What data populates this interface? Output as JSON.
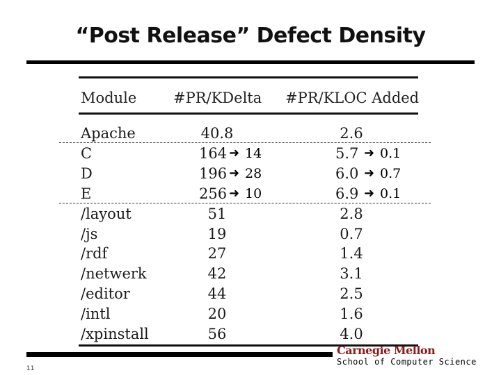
{
  "slide": {
    "title": "“Post Release” Defect Density",
    "page_number": "11"
  },
  "table": {
    "headers": [
      "Module",
      "#PR/KDelta",
      "#PR/KLOC Added"
    ],
    "rows": [
      {
        "module": "Apache",
        "kdelta": "40.8",
        "kloc": "2.6"
      },
      {
        "module": "C",
        "kdelta": "164",
        "kdelta_new": "14",
        "kloc": "5.7",
        "kloc_new": "0.1"
      },
      {
        "module": "D",
        "kdelta": "196",
        "kdelta_new": "28",
        "kloc": "6.0",
        "kloc_new": "0.7"
      },
      {
        "module": "E",
        "kdelta": "256",
        "kdelta_new": "10",
        "kloc": "6.9",
        "kloc_new": "0.1"
      },
      {
        "module": "/layout",
        "kdelta": "51",
        "kloc": "2.8"
      },
      {
        "module": "/js",
        "kdelta": "19",
        "kloc": "0.7"
      },
      {
        "module": "/rdf",
        "kdelta": "27",
        "kloc": "1.4"
      },
      {
        "module": "/netwerk",
        "kdelta": "42",
        "kloc": "3.1"
      },
      {
        "module": "/editor",
        "kdelta": "44",
        "kloc": "2.5"
      },
      {
        "module": "/intl",
        "kdelta": "20",
        "kloc": "1.6"
      },
      {
        "module": "/xpinstall",
        "kdelta": "56",
        "kloc": "4.0"
      }
    ]
  },
  "footer": {
    "university": "Carnegie Mellon",
    "school": "School of Computer Science"
  },
  "icons": {
    "arrow": "right-arrow-icon"
  },
  "colors": {
    "brand": "#8b1a1a"
  }
}
